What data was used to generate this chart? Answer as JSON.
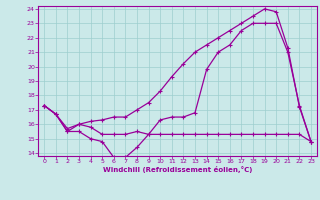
{
  "xlabel": "Windchill (Refroidissement éolien,°C)",
  "xlim": [
    -0.5,
    23.5
  ],
  "ylim": [
    13.8,
    24.2
  ],
  "yticks": [
    14,
    15,
    16,
    17,
    18,
    19,
    20,
    21,
    22,
    23,
    24
  ],
  "xticks": [
    0,
    1,
    2,
    3,
    4,
    5,
    6,
    7,
    8,
    9,
    10,
    11,
    12,
    13,
    14,
    15,
    16,
    17,
    18,
    19,
    20,
    21,
    22,
    23
  ],
  "bg_color": "#cbe9e9",
  "grid_color": "#9ecece",
  "line_color": "#990099",
  "line1_x": [
    0,
    1,
    2,
    3,
    4,
    5,
    6,
    7,
    8,
    9,
    10,
    11,
    12,
    13,
    14,
    15,
    16,
    17,
    18,
    19,
    20,
    21,
    22,
    23
  ],
  "line1_y": [
    17.3,
    16.7,
    15.5,
    15.5,
    15.0,
    14.8,
    13.7,
    13.7,
    14.4,
    15.3,
    16.3,
    16.5,
    16.5,
    16.8,
    19.8,
    21.0,
    21.5,
    22.5,
    23.0,
    23.0,
    23.0,
    21.0,
    17.3,
    14.8
  ],
  "line2_x": [
    0,
    1,
    2,
    3,
    4,
    5,
    6,
    7,
    8,
    9,
    10,
    11,
    12,
    13,
    14,
    15,
    16,
    17,
    18,
    19,
    20,
    21,
    22,
    23
  ],
  "line2_y": [
    17.3,
    16.7,
    15.7,
    16.0,
    16.2,
    16.3,
    16.5,
    16.5,
    17.0,
    17.5,
    18.3,
    19.3,
    20.2,
    21.0,
    21.5,
    22.0,
    22.5,
    23.0,
    23.5,
    24.0,
    23.8,
    21.3,
    17.2,
    14.8
  ],
  "line3_x": [
    0,
    1,
    2,
    3,
    4,
    5,
    6,
    7,
    8,
    9,
    10,
    11,
    12,
    13,
    14,
    15,
    16,
    17,
    18,
    19,
    20,
    21,
    22,
    23
  ],
  "line3_y": [
    17.3,
    16.7,
    15.5,
    16.0,
    15.8,
    15.3,
    15.3,
    15.3,
    15.5,
    15.3,
    15.3,
    15.3,
    15.3,
    15.3,
    15.3,
    15.3,
    15.3,
    15.3,
    15.3,
    15.3,
    15.3,
    15.3,
    15.3,
    14.8
  ]
}
